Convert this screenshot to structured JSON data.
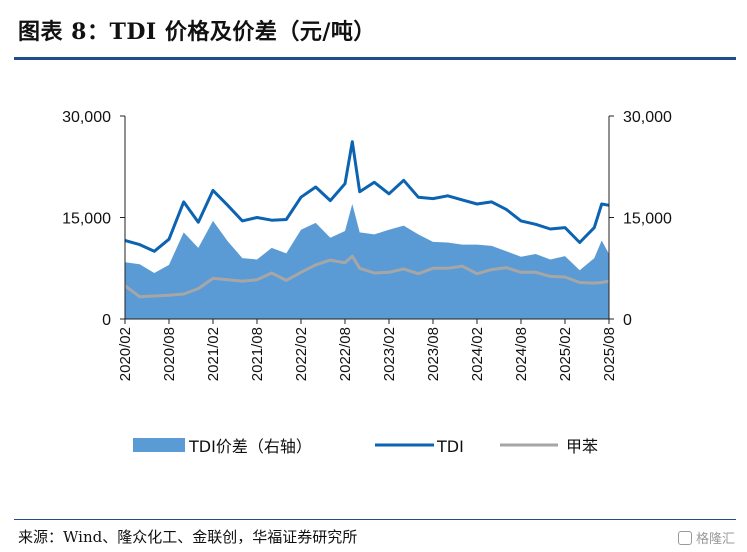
{
  "figure": {
    "title": "图表 8：TDI 价格及价差（元/吨）",
    "source": "来源：Wind、隆众化工、金联创，华福证券研究所",
    "watermark": "格隆汇"
  },
  "colors": {
    "spread": "#5b9bd5",
    "tdi": "#0b63b1",
    "toluene": "#a6a6a6",
    "rule": "#1f4e8c"
  },
  "chart_data": {
    "type": "line",
    "title": "TDI 价格及价差（元/吨）",
    "x": [
      "2020-02",
      "2020-04",
      "2020-06",
      "2020-08",
      "2020-10",
      "2020-12",
      "2021-02",
      "2021-04",
      "2021-06",
      "2021-08",
      "2021-10",
      "2021-12",
      "2022-02",
      "2022-04",
      "2022-06",
      "2022-08",
      "2022-09",
      "2022-10",
      "2022-12",
      "2023-02",
      "2023-04",
      "2023-06",
      "2023-08",
      "2023-10",
      "2023-12",
      "2024-02",
      "2024-04",
      "2024-06",
      "2024-08",
      "2024-10",
      "2024-12",
      "2025-02",
      "2025-04",
      "2025-06",
      "2025-07",
      "2025-08"
    ],
    "x_ticks": [
      "2020/02",
      "2020/08",
      "2021/02",
      "2021/08",
      "2022/02",
      "2022/08",
      "2023/02",
      "2023/08",
      "2024/02",
      "2024/08",
      "2025/02",
      "2025/08"
    ],
    "y_left": {
      "ylim": [
        0,
        30000
      ],
      "ticks": [
        "0",
        "15,000",
        "30,000"
      ],
      "label": ""
    },
    "y_right": {
      "ylim": [
        0,
        30000
      ],
      "ticks": [
        "0",
        "15,000",
        "30,000"
      ],
      "label": ""
    },
    "series": [
      {
        "name": "TDI价差（右轴）",
        "type": "area",
        "axis": "right",
        "values": [
          8400,
          8100,
          6800,
          8000,
          12800,
          10500,
          14500,
          11500,
          9000,
          8800,
          10500,
          9700,
          13200,
          14200,
          12000,
          13000,
          17000,
          12800,
          12500,
          13200,
          13800,
          12500,
          11400,
          11300,
          11000,
          11000,
          10800,
          10000,
          9200,
          9600,
          8800,
          9300,
          7200,
          9000,
          11600,
          9600
        ]
      },
      {
        "name": "TDI",
        "type": "line",
        "axis": "left",
        "values": [
          11600,
          11000,
          10000,
          11800,
          17300,
          14300,
          19000,
          16800,
          14500,
          15000,
          14600,
          14700,
          18000,
          19500,
          17500,
          20000,
          26200,
          18800,
          20200,
          18500,
          20500,
          18000,
          17800,
          18200,
          17600,
          17000,
          17300,
          16200,
          14500,
          14000,
          13300,
          13500,
          11300,
          13500,
          17000,
          16800
        ]
      },
      {
        "name": "甲苯",
        "type": "line",
        "axis": "left",
        "values": [
          4900,
          3300,
          3400,
          3500,
          3700,
          4500,
          6000,
          5800,
          5600,
          5800,
          6800,
          5700,
          6900,
          8000,
          8700,
          8300,
          9300,
          7500,
          6800,
          6900,
          7400,
          6700,
          7500,
          7500,
          7800,
          6700,
          7300,
          7600,
          6900,
          6900,
          6300,
          6200,
          5400,
          5300,
          5400,
          5600
        ]
      }
    ],
    "legend": [
      "TDI价差（右轴）",
      "TDI",
      "甲苯"
    ],
    "legend_position": "bottom",
    "grid": false
  }
}
